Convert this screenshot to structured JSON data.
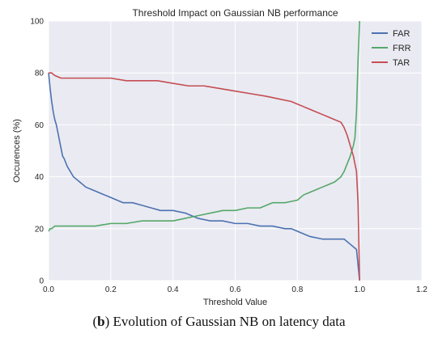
{
  "chart_data": {
    "type": "line",
    "title": "Threshold Impact on Gaussian NB performance",
    "xlabel": "Threshold Value",
    "ylabel": "Occurences (%)",
    "xlim": [
      0,
      1.2
    ],
    "ylim": [
      0,
      100
    ],
    "xticks": [
      "0.0",
      "0.2",
      "0.4",
      "0.6",
      "0.8",
      "1.0",
      "1.2"
    ],
    "yticks": [
      "0",
      "20",
      "40",
      "60",
      "80",
      "100"
    ],
    "grid": true,
    "legend_position": "top-right",
    "series": [
      {
        "name": "FAR",
        "color": "#4c72b0",
        "x": [
          0.0,
          0.005,
          0.01,
          0.015,
          0.02,
          0.025,
          0.03,
          0.035,
          0.04,
          0.045,
          0.05,
          0.06,
          0.07,
          0.08,
          0.09,
          0.1,
          0.12,
          0.14,
          0.16,
          0.18,
          0.2,
          0.22,
          0.24,
          0.27,
          0.3,
          0.33,
          0.36,
          0.4,
          0.44,
          0.48,
          0.52,
          0.56,
          0.6,
          0.64,
          0.68,
          0.72,
          0.76,
          0.78,
          0.8,
          0.82,
          0.84,
          0.88,
          0.92,
          0.95,
          0.97,
          0.98,
          0.99,
          1.0
        ],
        "y": [
          80,
          74,
          69,
          65,
          62,
          60,
          57,
          54,
          51,
          48,
          47,
          44,
          42,
          40,
          39,
          38,
          36,
          35,
          34,
          33,
          32,
          31,
          30,
          30,
          29,
          28,
          27,
          27,
          26,
          24,
          23,
          23,
          22,
          22,
          21,
          21,
          20,
          20,
          19,
          18,
          17,
          16,
          16,
          16,
          14,
          13,
          12,
          0
        ]
      },
      {
        "name": "FRR",
        "color": "#55a868",
        "x": [
          0.0,
          0.005,
          0.01,
          0.02,
          0.04,
          0.06,
          0.1,
          0.15,
          0.2,
          0.25,
          0.3,
          0.35,
          0.4,
          0.44,
          0.48,
          0.52,
          0.56,
          0.6,
          0.64,
          0.68,
          0.72,
          0.76,
          0.8,
          0.82,
          0.84,
          0.86,
          0.88,
          0.9,
          0.92,
          0.94,
          0.95,
          0.96,
          0.97,
          0.98,
          0.985,
          0.99,
          0.995,
          1.0
        ],
        "y": [
          19,
          20,
          20,
          21,
          21,
          21,
          21,
          21,
          22,
          22,
          23,
          23,
          23,
          24,
          25,
          26,
          27,
          27,
          28,
          28,
          30,
          30,
          31,
          33,
          34,
          35,
          36,
          37,
          38,
          40,
          42,
          45,
          48,
          52,
          55,
          65,
          85,
          100
        ]
      },
      {
        "name": "TAR",
        "color": "#c44e52",
        "x": [
          0.0,
          0.01,
          0.02,
          0.04,
          0.06,
          0.1,
          0.15,
          0.2,
          0.25,
          0.3,
          0.35,
          0.4,
          0.45,
          0.5,
          0.55,
          0.6,
          0.65,
          0.7,
          0.74,
          0.78,
          0.8,
          0.82,
          0.84,
          0.86,
          0.88,
          0.9,
          0.92,
          0.94,
          0.95,
          0.96,
          0.97,
          0.98,
          0.985,
          0.99,
          0.995,
          1.0
        ],
        "y": [
          80,
          80,
          79,
          78,
          78,
          78,
          78,
          78,
          77,
          77,
          77,
          76,
          75,
          75,
          74,
          73,
          72,
          71,
          70,
          69,
          68,
          67,
          66,
          65,
          64,
          63,
          62,
          61,
          59,
          56,
          52,
          48,
          45,
          42,
          30,
          0
        ]
      }
    ]
  },
  "caption": {
    "label": "b",
    "text": ") Evolution of Gaussian NB on latency data"
  }
}
